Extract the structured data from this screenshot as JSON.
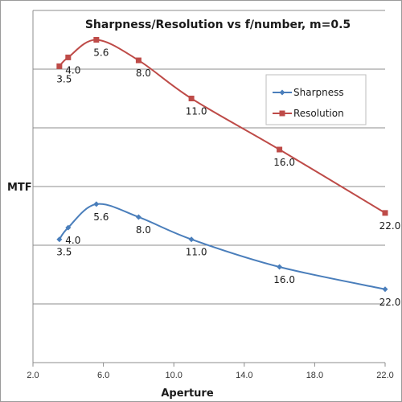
{
  "chart_data": {
    "type": "line",
    "title": "Sharpness/Resolution vs f/number, m=0.5",
    "xlabel": "Aperture",
    "ylabel": "MTF",
    "xlim": [
      2.0,
      22.0
    ],
    "ylim": [
      0,
      6
    ],
    "x_ticks": [
      2.0,
      6.0,
      10.0,
      14.0,
      18.0,
      22.0
    ],
    "x_tick_labels": [
      "2.0",
      "6.0",
      "10.0",
      "14.0",
      "18.0",
      "22.0"
    ],
    "y_ticks": [
      0,
      1,
      2,
      3,
      4,
      5,
      6
    ],
    "y_tick_labels_visible": false,
    "grid": {
      "horizontal": true,
      "vertical": false
    },
    "legend": {
      "placement": "right",
      "entries": [
        "Sharpness",
        "Resolution"
      ]
    },
    "series": [
      {
        "name": "Sharpness",
        "color": "#4a7ebb",
        "marker": "diamond",
        "x": [
          3.5,
          4.0,
          5.6,
          8.0,
          11.0,
          16.0,
          22.0
        ],
        "y": [
          2.1,
          2.3,
          2.7,
          2.48,
          2.1,
          1.63,
          1.25
        ],
        "point_labels": [
          "3.5",
          "4.0",
          "5.6",
          "8.0",
          "11.0",
          "16.0",
          "22.0"
        ]
      },
      {
        "name": "Resolution",
        "color": "#be4b48",
        "marker": "square",
        "x": [
          3.5,
          4.0,
          5.6,
          8.0,
          11.0,
          16.0,
          22.0
        ],
        "y": [
          5.05,
          5.2,
          5.5,
          5.15,
          4.5,
          3.63,
          2.55
        ],
        "point_labels": [
          "3.5",
          "4.0",
          "5.6",
          "8.0",
          "11.0",
          "16.0",
          "22.0"
        ]
      }
    ]
  }
}
